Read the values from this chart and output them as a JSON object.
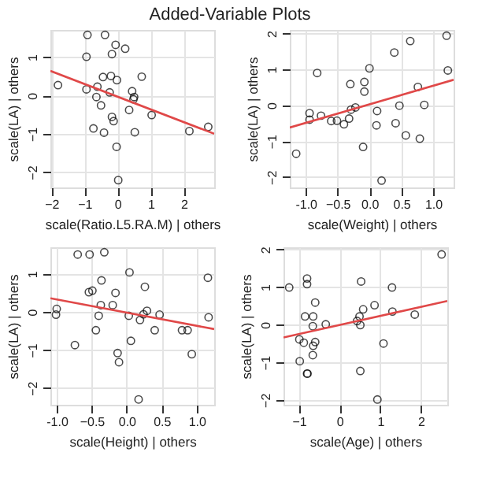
{
  "chart_data": [
    {
      "type": "scatter",
      "title": "Added-Variable Plots",
      "xlabel": "scale(Ratio.L5.RA.M) | others",
      "ylabel": "scale(LA) | others",
      "xlim": [
        -2.03,
        2.92
      ],
      "ylim": [
        -2.4,
        1.71
      ],
      "xticks": [
        -2,
        -1,
        0,
        1,
        2
      ],
      "yticks": [
        -2,
        -1,
        0,
        1
      ],
      "grid": true,
      "marker": "circle",
      "series": [
        {
          "type": "scatter",
          "color": "#000000",
          "x": [
            -1.8,
            -0.91,
            -0.38,
            -0.94,
            -0.06,
            0.23,
            -0.17,
            -0.44,
            -0.2,
            -0.02,
            0.73,
            -0.94,
            -0.61,
            -0.24,
            -0.64,
            -0.5,
            0.44,
            0.5,
            0.48,
            0.35,
            1.03,
            -0.17,
            -0.12,
            -0.73,
            -0.41,
            0.52,
            -0.03,
            0.02,
            2.17,
            2.74
          ],
          "values": [
            0.27,
            1.58,
            1.58,
            1.01,
            1.32,
            1.22,
            1.08,
            0.48,
            0.51,
            0.4,
            0.49,
            0.16,
            0.23,
            0.08,
            -0.04,
            -0.26,
            0.11,
            -0.04,
            -0.1,
            -0.38,
            -0.51,
            -0.56,
            -0.67,
            -0.86,
            -0.97,
            -0.96,
            -1.34,
            -2.21,
            -0.93,
            -0.82
          ]
        },
        {
          "type": "line",
          "marker": "none",
          "color": "#e04848",
          "x": [
            -2.03,
            2.92
          ],
          "values": [
            0.64,
            -1.0
          ]
        }
      ]
    },
    {
      "type": "scatter",
      "xlabel": "scale(Weight) | others",
      "ylabel": "scale(LA) | others",
      "xlim": [
        -1.25,
        1.32
      ],
      "ylim": [
        -2.29,
        2.1
      ],
      "xticks": [
        {
          "value": -1,
          "label": "-1.0"
        },
        -0.5,
        {
          "value": 0,
          "label": "0.0"
        },
        0.5,
        {
          "value": 1,
          "label": "1.0"
        }
      ],
      "yticks": [
        -2,
        -1,
        0,
        1,
        2
      ],
      "grid": true,
      "marker": "circle",
      "series": [
        {
          "type": "scatter",
          "color": "#000000",
          "x": [
            -1.15,
            -0.94,
            -0.94,
            -0.82,
            -0.76,
            -0.6,
            -0.51,
            -0.4,
            -0.32,
            -0.3,
            -0.29,
            -0.22,
            -0.08,
            -0.08,
            0.0,
            -0.1,
            0.12,
            0.11,
            0.19,
            0.39,
            0.41,
            0.47,
            0.57,
            0.64,
            0.76,
            0.79,
            0.86,
            1.21,
            1.23
          ],
          "values": [
            -1.35,
            -0.22,
            -0.4,
            0.9,
            -0.29,
            -0.44,
            -0.43,
            -0.53,
            -0.37,
            0.59,
            -0.12,
            -0.06,
            0.65,
            0.38,
            1.03,
            -1.16,
            -0.16,
            -0.56,
            -2.1,
            1.47,
            -0.5,
            -0.01,
            -0.84,
            1.79,
            0.51,
            -0.93,
            0.01,
            1.94,
            0.97
          ]
        },
        {
          "type": "line",
          "marker": "none",
          "color": "#e04848",
          "x": [
            -1.25,
            1.32
          ],
          "values": [
            -0.62,
            0.71
          ]
        }
      ]
    },
    {
      "type": "scatter",
      "xlabel": "scale(Height) | others",
      "ylabel": "scale(LA) | others",
      "xlim": [
        -1.09,
        1.25
      ],
      "ylim": [
        -2.44,
        1.7
      ],
      "xticks": [
        {
          "value": -1,
          "label": "-1.0"
        },
        -0.5,
        {
          "value": 0,
          "label": "0.0"
        },
        0.5,
        {
          "value": 1,
          "label": "1.0"
        }
      ],
      "yticks": [
        -2,
        -1,
        0,
        1
      ],
      "grid": true,
      "marker": "circle",
      "series": [
        {
          "type": "scatter",
          "color": "#000000",
          "x": [
            -1.0,
            -1.01,
            -0.7,
            -0.53,
            -0.32,
            -0.54,
            -0.49,
            -0.36,
            -0.37,
            -0.2,
            -0.16,
            0.04,
            0.26,
            -0.4,
            -0.44,
            -0.74,
            0.03,
            0.19,
            0.24,
            0.29,
            0.06,
            -0.13,
            -0.11,
            0.4,
            0.47,
            0.79,
            0.87,
            0.93,
            1.16,
            1.17,
            0.17
          ],
          "values": [
            0.08,
            -0.07,
            1.51,
            1.51,
            1.57,
            0.52,
            0.56,
            0.83,
            0.18,
            0.18,
            0.5,
            1.04,
            0.66,
            -0.1,
            -0.48,
            -0.87,
            -0.1,
            -0.21,
            -0.06,
            0.03,
            -0.76,
            -1.08,
            -1.32,
            -0.48,
            -0.07,
            -0.48,
            -0.48,
            -1.11,
            0.9,
            -0.14,
            -2.3
          ]
        },
        {
          "type": "line",
          "marker": "none",
          "color": "#e04848",
          "x": [
            -1.09,
            1.25
          ],
          "values": [
            0.36,
            -0.45
          ]
        }
      ]
    },
    {
      "type": "scatter",
      "xlabel": "scale(Age) | others",
      "ylabel": "scale(LA) | others",
      "xlim": [
        -1.38,
        2.65
      ],
      "ylim": [
        -2.13,
        2.06
      ],
      "xticks": [
        -1,
        0,
        1,
        2
      ],
      "yticks": [
        -2,
        -1,
        0,
        1,
        2
      ],
      "grid": true,
      "marker": "circle",
      "series": [
        {
          "type": "scatter",
          "color": "#000000",
          "x": [
            -1.24,
            -0.8,
            -0.8,
            -0.6,
            -0.85,
            -0.65,
            -0.66,
            -0.34,
            -0.99,
            -0.88,
            -0.6,
            -0.65,
            -0.66,
            -0.98,
            -0.8,
            -0.79,
            0.53,
            0.43,
            0.49,
            0.58,
            0.51,
            0.86,
            1.29,
            1.3,
            1.08,
            0.51,
            0.93,
            1.85,
            2.51
          ],
          "values": [
            0.99,
            1.23,
            1.08,
            0.59,
            0.22,
            0.22,
            -0.04,
            0.01,
            -0.39,
            -0.48,
            -0.46,
            -0.56,
            -0.81,
            -0.97,
            -1.3,
            -1.3,
            1.15,
            0.1,
            0.22,
            0.41,
            -0.01,
            0.52,
            0.99,
            0.35,
            -0.5,
            -1.23,
            -1.99,
            0.27,
            1.87
          ]
        },
        {
          "type": "line",
          "marker": "none",
          "color": "#e04848",
          "x": [
            -1.38,
            2.65
          ],
          "values": [
            -0.34,
            0.63
          ]
        }
      ]
    }
  ]
}
